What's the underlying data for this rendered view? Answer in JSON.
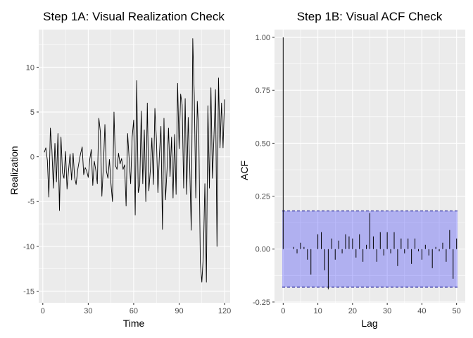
{
  "chart_data": [
    {
      "type": "line",
      "title": "Step 1A: Visual Realization Check",
      "xlabel": "Time",
      "ylabel": "Realization",
      "xlim": [
        -2.7,
        123.7
      ],
      "ylim": [
        -16.3,
        14.2
      ],
      "xticks": [
        0,
        30,
        60,
        90,
        120
      ],
      "yticks": [
        -15,
        -10,
        -5,
        0,
        5,
        10
      ],
      "x_tick_labels": [
        "0",
        "30",
        "60",
        "90",
        "120"
      ],
      "y_tick_labels": [
        "-15",
        "-10",
        "-5",
        "0",
        "5",
        "10"
      ],
      "grid": true,
      "series": [
        {
          "color": "#000000",
          "x": [
            1,
            2,
            3,
            4,
            5,
            6,
            7,
            8,
            9,
            10,
            11,
            12,
            13,
            14,
            15,
            16,
            17,
            18,
            19,
            20,
            21,
            22,
            23,
            24,
            25,
            26,
            27,
            28,
            29,
            30,
            31,
            32,
            33,
            34,
            35,
            36,
            37,
            38,
            39,
            40,
            41,
            42,
            43,
            44,
            45,
            46,
            47,
            48,
            49,
            50,
            51,
            52,
            53,
            54,
            55,
            56,
            57,
            58,
            59,
            60,
            61,
            62,
            63,
            64,
            65,
            66,
            67,
            68,
            69,
            70,
            71,
            72,
            73,
            74,
            75,
            76,
            77,
            78,
            79,
            80,
            81,
            82,
            83,
            84,
            85,
            86,
            87,
            88,
            89,
            90,
            91,
            92,
            93,
            94,
            95,
            96,
            97,
            98,
            99,
            100,
            101,
            102,
            103,
            104,
            105,
            106,
            107,
            108,
            109,
            110,
            111,
            112,
            113,
            114,
            115,
            116,
            117,
            118,
            119,
            120
          ],
          "values": [
            0.5,
            1.0,
            -0.4,
            -4.5,
            3.2,
            0.8,
            -3.5,
            1.5,
            -2.8,
            2.6,
            -6.0,
            2.2,
            -1.8,
            -2.4,
            0.6,
            -3.6,
            -1.5,
            0.3,
            -2.6,
            0.4,
            -2.3,
            -3.1,
            -1.5,
            -0.5,
            0.4,
            1.1,
            -2.0,
            -1.2,
            -1.6,
            -2.3,
            -0.3,
            0.8,
            -3.2,
            -0.5,
            -1.5,
            -3.0,
            4.3,
            2.8,
            -4.4,
            -1.0,
            3.6,
            -1.6,
            -2.4,
            -0.3,
            -3.0,
            -5.0,
            5.0,
            -1.0,
            -1.4,
            0.4,
            -0.8,
            -0.2,
            -1.4,
            -0.9,
            -5.5,
            2.6,
            -0.2,
            -3.0,
            2.2,
            4.1,
            -6.5,
            8.5,
            -4.0,
            -3.2,
            5.1,
            -3.0,
            3.0,
            -5.0,
            6.0,
            -3.8,
            -1.5,
            2.1,
            -3.1,
            5.4,
            2.0,
            -4.0,
            0.3,
            3.4,
            -8.1,
            4.3,
            -4.8,
            -1.5,
            3.2,
            -2.2,
            2.2,
            -4.6,
            2.5,
            -4.2,
            8.2,
            0.9,
            7.0,
            5.8,
            -3.5,
            6.5,
            -4.2,
            4.4,
            -1.2,
            -8.2,
            13.2,
            6.8,
            -4.6,
            6.2,
            2.3,
            -11.8,
            -14.0,
            -11.0,
            -3.0,
            -14.0,
            5.7,
            -3.5,
            7.7,
            -2.4,
            2.3,
            7.5,
            -10.0,
            8.8,
            1.0,
            6.0,
            1.0,
            6.4
          ]
        }
      ]
    },
    {
      "type": "bar",
      "title": "Step 1B: Visual ACF Check",
      "xlabel": "Lag",
      "ylabel": "ACF",
      "xlim": [
        -2.5,
        52.5
      ],
      "ylim": [
        -0.2536,
        1.0368
      ],
      "xticks": [
        0,
        10,
        20,
        30,
        40,
        50
      ],
      "yticks": [
        -0.25,
        0,
        0.25,
        0.5,
        0.75,
        1.0
      ],
      "x_tick_labels": [
        "0",
        "10",
        "20",
        "30",
        "40",
        "50"
      ],
      "y_tick_labels": [
        "-0.25",
        "0.00",
        "0.25",
        "0.50",
        "0.75",
        "1.00"
      ],
      "grid": true,
      "confidence_band": [
        -0.18,
        0.18
      ],
      "band_color": "#0000ff",
      "band_line_color": "#00008b",
      "series": [
        {
          "color": "#000000",
          "x": [
            0,
            1,
            2,
            3,
            4,
            5,
            6,
            7,
            8,
            9,
            10,
            11,
            12,
            13,
            14,
            15,
            16,
            17,
            18,
            19,
            20,
            21,
            22,
            23,
            24,
            25,
            26,
            27,
            28,
            29,
            30,
            31,
            32,
            33,
            34,
            35,
            36,
            37,
            38,
            39,
            40,
            41,
            42,
            43,
            44,
            45,
            46,
            47,
            48,
            49,
            50
          ],
          "values": [
            1.0,
            0.0,
            0.0,
            0.01,
            -0.02,
            0.03,
            0.01,
            -0.05,
            -0.12,
            0.0,
            0.07,
            0.08,
            -0.1,
            -0.19,
            0.05,
            -0.05,
            0.04,
            -0.02,
            0.07,
            0.06,
            0.05,
            -0.04,
            0.07,
            -0.06,
            0.02,
            0.17,
            0.06,
            -0.06,
            0.08,
            -0.03,
            0.08,
            -0.02,
            0.08,
            -0.08,
            0.05,
            -0.02,
            0.05,
            -0.07,
            0.05,
            -0.01,
            -0.05,
            0.02,
            -0.03,
            -0.09,
            0.01,
            -0.01,
            0.03,
            -0.06,
            0.09,
            -0.14,
            0.05
          ]
        }
      ]
    }
  ]
}
